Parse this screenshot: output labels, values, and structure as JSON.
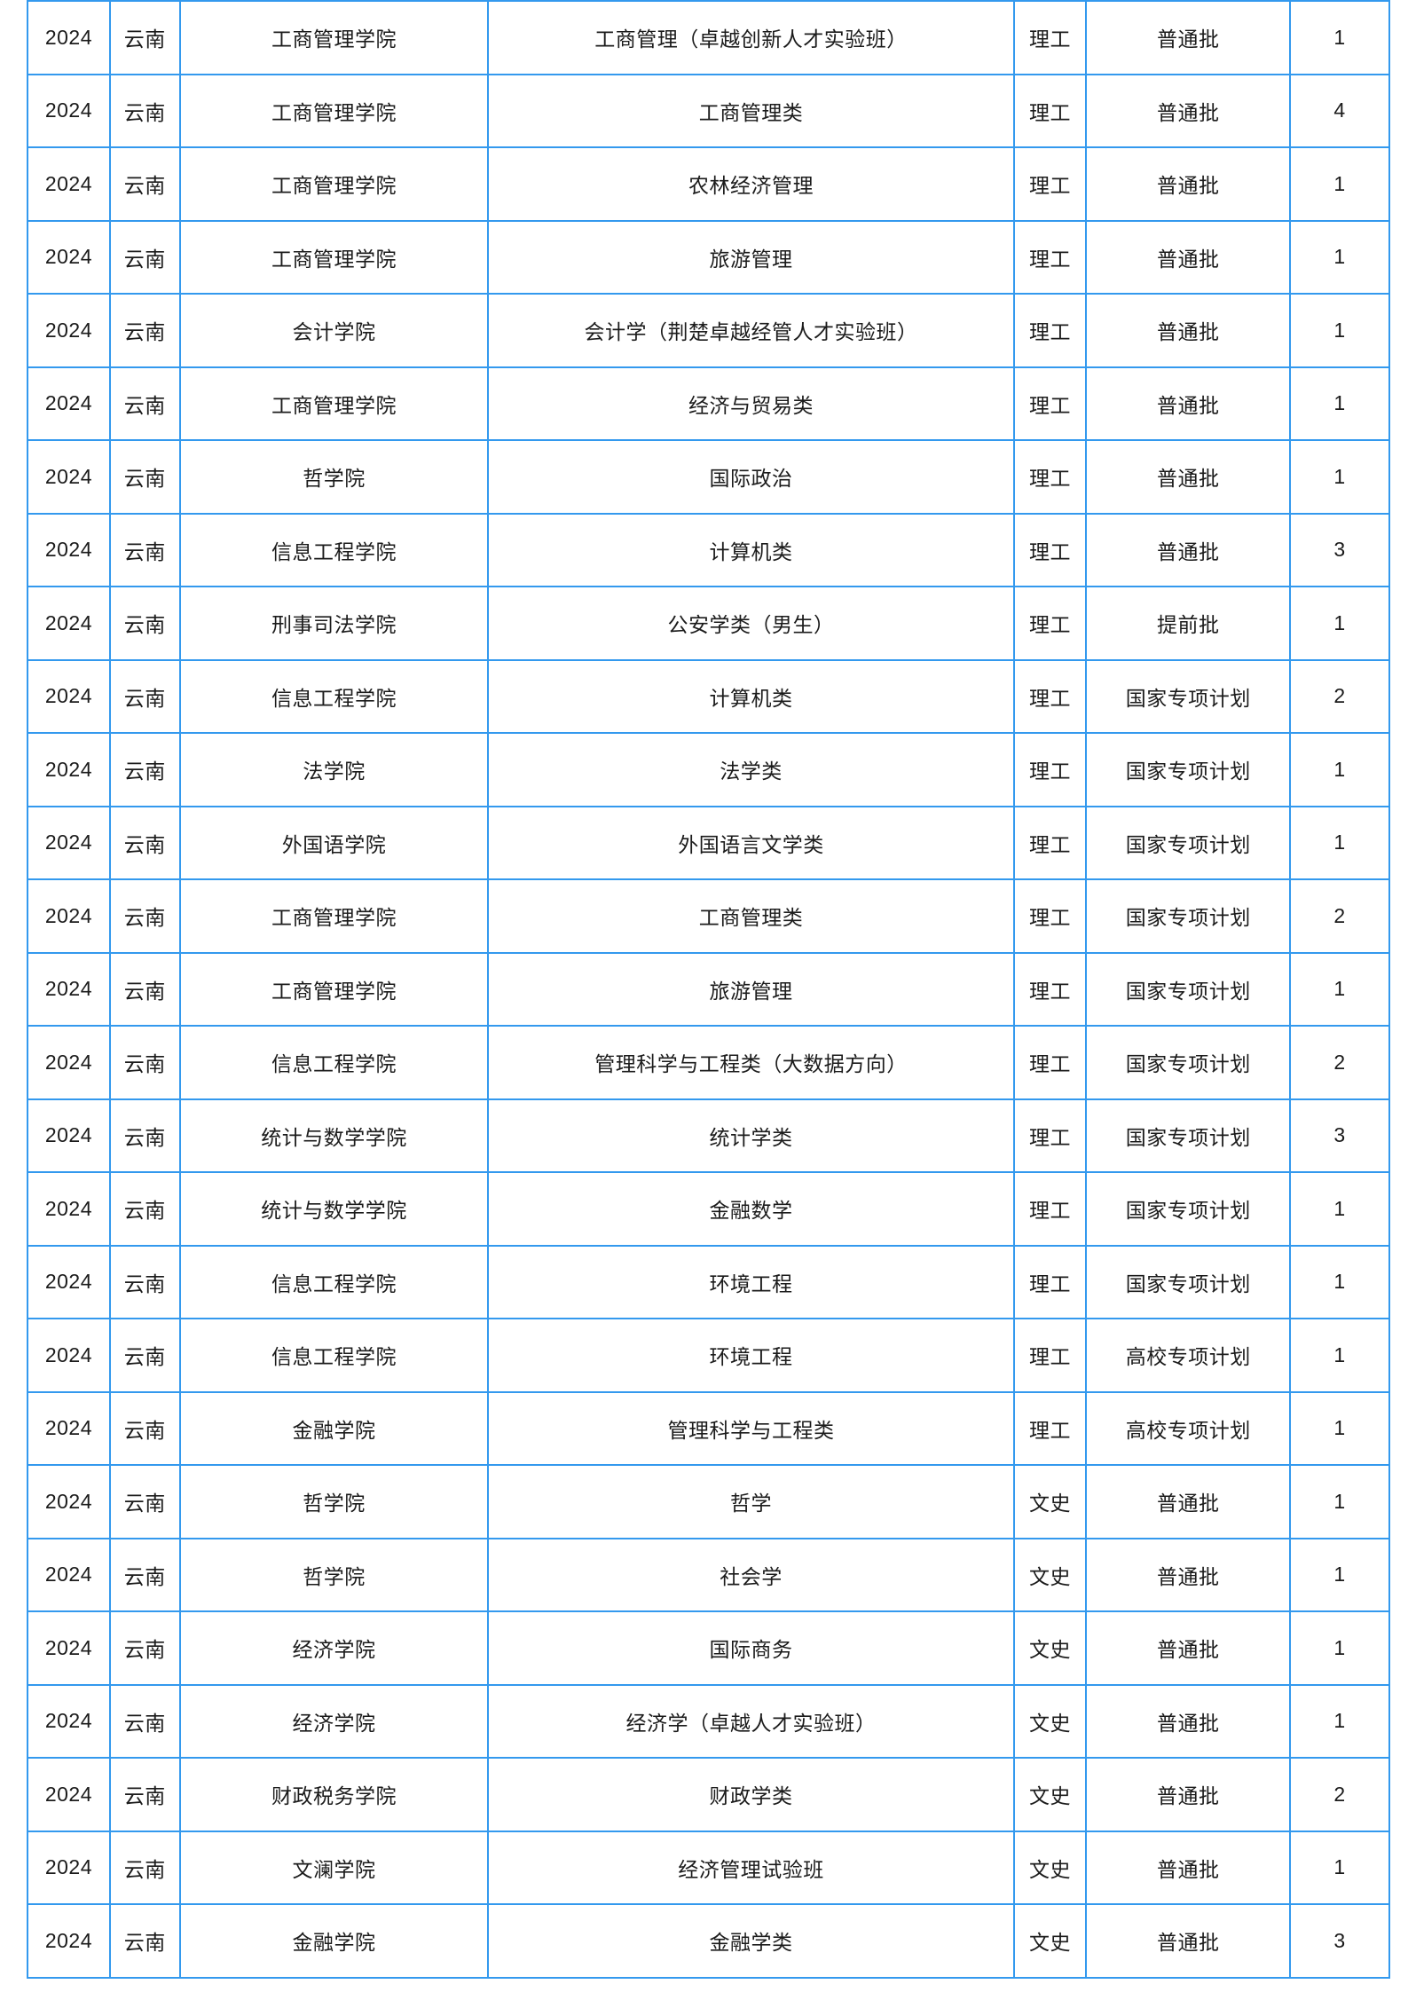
{
  "table": {
    "border_color": "#3399ee",
    "text_color": "#1b1b1b",
    "column_keys": [
      "year",
      "province",
      "college",
      "major",
      "subject",
      "batch",
      "count"
    ],
    "rows": [
      {
        "year": "2024",
        "province": "云南",
        "college": "工商管理学院",
        "major": "工商管理（卓越创新人才实验班）",
        "subject": "理工",
        "batch": "普通批",
        "count": "1"
      },
      {
        "year": "2024",
        "province": "云南",
        "college": "工商管理学院",
        "major": "工商管理类",
        "subject": "理工",
        "batch": "普通批",
        "count": "4"
      },
      {
        "year": "2024",
        "province": "云南",
        "college": "工商管理学院",
        "major": "农林经济管理",
        "subject": "理工",
        "batch": "普通批",
        "count": "1"
      },
      {
        "year": "2024",
        "province": "云南",
        "college": "工商管理学院",
        "major": "旅游管理",
        "subject": "理工",
        "batch": "普通批",
        "count": "1"
      },
      {
        "year": "2024",
        "province": "云南",
        "college": "会计学院",
        "major": "会计学（荆楚卓越经管人才实验班）",
        "subject": "理工",
        "batch": "普通批",
        "count": "1"
      },
      {
        "year": "2024",
        "province": "云南",
        "college": "工商管理学院",
        "major": "经济与贸易类",
        "subject": "理工",
        "batch": "普通批",
        "count": "1"
      },
      {
        "year": "2024",
        "province": "云南",
        "college": "哲学院",
        "major": "国际政治",
        "subject": "理工",
        "batch": "普通批",
        "count": "1"
      },
      {
        "year": "2024",
        "province": "云南",
        "college": "信息工程学院",
        "major": "计算机类",
        "subject": "理工",
        "batch": "普通批",
        "count": "3"
      },
      {
        "year": "2024",
        "province": "云南",
        "college": "刑事司法学院",
        "major": "公安学类（男生）",
        "subject": "理工",
        "batch": "提前批",
        "count": "1"
      },
      {
        "year": "2024",
        "province": "云南",
        "college": "信息工程学院",
        "major": "计算机类",
        "subject": "理工",
        "batch": "国家专项计划",
        "count": "2"
      },
      {
        "year": "2024",
        "province": "云南",
        "college": "法学院",
        "major": "法学类",
        "subject": "理工",
        "batch": "国家专项计划",
        "count": "1"
      },
      {
        "year": "2024",
        "province": "云南",
        "college": "外国语学院",
        "major": "外国语言文学类",
        "subject": "理工",
        "batch": "国家专项计划",
        "count": "1"
      },
      {
        "year": "2024",
        "province": "云南",
        "college": "工商管理学院",
        "major": "工商管理类",
        "subject": "理工",
        "batch": "国家专项计划",
        "count": "2"
      },
      {
        "year": "2024",
        "province": "云南",
        "college": "工商管理学院",
        "major": "旅游管理",
        "subject": "理工",
        "batch": "国家专项计划",
        "count": "1"
      },
      {
        "year": "2024",
        "province": "云南",
        "college": "信息工程学院",
        "major": "管理科学与工程类（大数据方向）",
        "subject": "理工",
        "batch": "国家专项计划",
        "count": "2"
      },
      {
        "year": "2024",
        "province": "云南",
        "college": "统计与数学学院",
        "major": "统计学类",
        "subject": "理工",
        "batch": "国家专项计划",
        "count": "3"
      },
      {
        "year": "2024",
        "province": "云南",
        "college": "统计与数学学院",
        "major": "金融数学",
        "subject": "理工",
        "batch": "国家专项计划",
        "count": "1"
      },
      {
        "year": "2024",
        "province": "云南",
        "college": "信息工程学院",
        "major": "环境工程",
        "subject": "理工",
        "batch": "国家专项计划",
        "count": "1"
      },
      {
        "year": "2024",
        "province": "云南",
        "college": "信息工程学院",
        "major": "环境工程",
        "subject": "理工",
        "batch": "高校专项计划",
        "count": "1"
      },
      {
        "year": "2024",
        "province": "云南",
        "college": "金融学院",
        "major": "管理科学与工程类",
        "subject": "理工",
        "batch": "高校专项计划",
        "count": "1"
      },
      {
        "year": "2024",
        "province": "云南",
        "college": "哲学院",
        "major": "哲学",
        "subject": "文史",
        "batch": "普通批",
        "count": "1"
      },
      {
        "year": "2024",
        "province": "云南",
        "college": "哲学院",
        "major": "社会学",
        "subject": "文史",
        "batch": "普通批",
        "count": "1"
      },
      {
        "year": "2024",
        "province": "云南",
        "college": "经济学院",
        "major": "国际商务",
        "subject": "文史",
        "batch": "普通批",
        "count": "1"
      },
      {
        "year": "2024",
        "province": "云南",
        "college": "经济学院",
        "major": "经济学（卓越人才实验班）",
        "subject": "文史",
        "batch": "普通批",
        "count": "1"
      },
      {
        "year": "2024",
        "province": "云南",
        "college": "财政税务学院",
        "major": "财政学类",
        "subject": "文史",
        "batch": "普通批",
        "count": "2"
      },
      {
        "year": "2024",
        "province": "云南",
        "college": "文澜学院",
        "major": "经济管理试验班",
        "subject": "文史",
        "batch": "普通批",
        "count": "1"
      },
      {
        "year": "2024",
        "province": "云南",
        "college": "金融学院",
        "major": "金融学类",
        "subject": "文史",
        "batch": "普通批",
        "count": "3"
      }
    ]
  }
}
